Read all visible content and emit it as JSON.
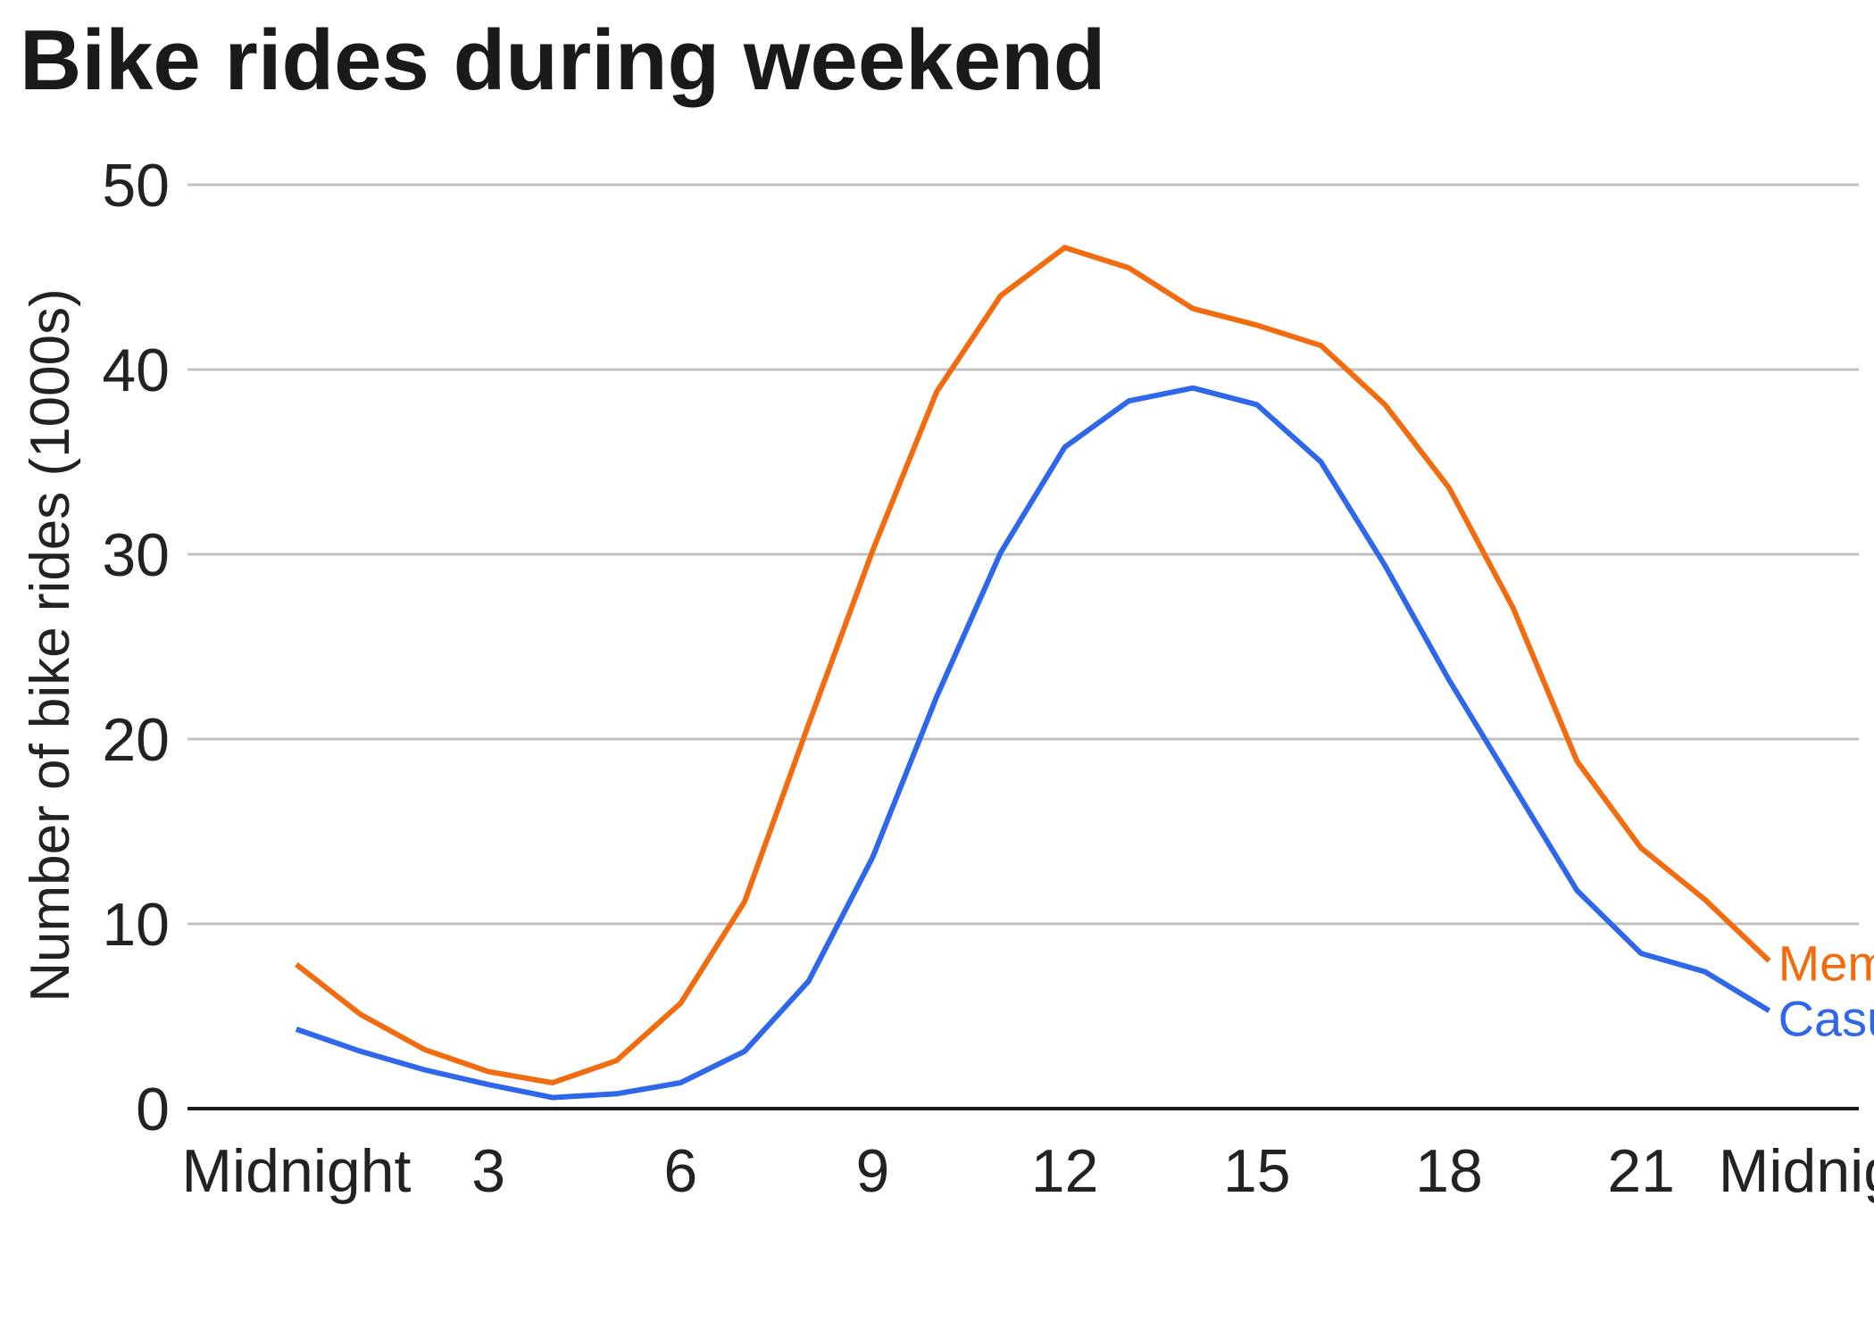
{
  "chart_data": {
    "type": "line",
    "title": "Bike rides during weekend",
    "xlabel": "",
    "ylabel": "Number of bike rides (1000s)",
    "x": [
      0,
      1,
      2,
      3,
      4,
      5,
      6,
      7,
      8,
      9,
      10,
      11,
      12,
      13,
      14,
      15,
      16,
      17,
      18,
      19,
      20,
      21,
      22,
      23
    ],
    "xlim": [
      -1.7,
      24.4
    ],
    "ylim": [
      0,
      50
    ],
    "x_ticks": [
      {
        "value": 0,
        "label": "Midnight"
      },
      {
        "value": 3,
        "label": "3"
      },
      {
        "value": 6,
        "label": "6"
      },
      {
        "value": 9,
        "label": "9"
      },
      {
        "value": 12,
        "label": "12"
      },
      {
        "value": 15,
        "label": "15"
      },
      {
        "value": 18,
        "label": "18"
      },
      {
        "value": 21,
        "label": "21"
      },
      {
        "value": 24,
        "label": "Midnight"
      }
    ],
    "y_ticks": [
      0,
      10,
      20,
      30,
      40,
      50
    ],
    "grid": "horizontal",
    "legend": "direct labels at line ends",
    "series": [
      {
        "name": "Member",
        "color": "#f26b0f",
        "values": [
          7.8,
          5.1,
          3.2,
          2.0,
          1.4,
          2.6,
          5.7,
          11.2,
          20.8,
          30.2,
          38.8,
          44.0,
          46.6,
          45.5,
          43.3,
          42.4,
          41.3,
          38.1,
          33.6,
          27.1,
          18.8,
          14.1,
          11.3,
          8.0
        ]
      },
      {
        "name": "Casual",
        "color": "#2f67ea",
        "values": [
          4.3,
          3.1,
          2.1,
          1.3,
          0.6,
          0.8,
          1.4,
          3.1,
          6.9,
          13.6,
          22.3,
          30.1,
          35.8,
          38.3,
          39.0,
          38.1,
          35.0,
          29.4,
          23.2,
          17.5,
          11.8,
          8.4,
          7.4,
          5.3
        ]
      }
    ]
  }
}
